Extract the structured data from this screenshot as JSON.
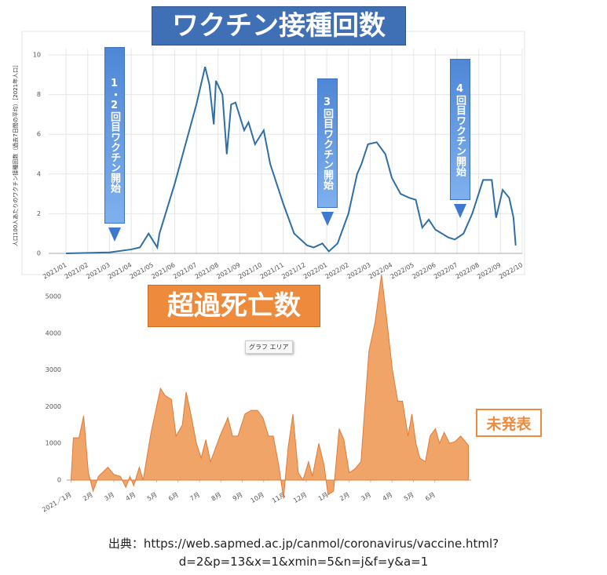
{
  "chart_data": [
    {
      "type": "line",
      "title": "ワクチン接種回数",
      "y_label": "人口100人あたりのワクチン接種回数（過去7日間の平均）［2021年人口］",
      "annotations": [
        "1・2回目ワクチン開始",
        "3回目ワクチン開始",
        "4回目ワクチン開始"
      ],
      "xlim": [
        -0.8,
        21
      ],
      "xticks": [
        {
          "value": 0,
          "label": "2021/01"
        },
        {
          "value": 1,
          "label": "2021/02"
        },
        {
          "value": 2,
          "label": "2021/03"
        },
        {
          "value": 3,
          "label": "2021/04"
        },
        {
          "value": 4,
          "label": "2021/05"
        },
        {
          "value": 5,
          "label": "2021/06"
        },
        {
          "value": 6,
          "label": "2021/07"
        },
        {
          "value": 7,
          "label": "2021/08"
        },
        {
          "value": 8,
          "label": "2021/09"
        },
        {
          "value": 9,
          "label": "2021/10"
        },
        {
          "value": 10,
          "label": "2021/11"
        },
        {
          "value": 11,
          "label": "2021/12"
        },
        {
          "value": 12,
          "label": "2022/01"
        },
        {
          "value": 13,
          "label": "2022/02"
        },
        {
          "value": 14,
          "label": "2022/03"
        },
        {
          "value": 15,
          "label": "2022/04"
        },
        {
          "value": 16,
          "label": "2022/05"
        },
        {
          "value": 17,
          "label": "2022/06"
        },
        {
          "value": 18,
          "label": "2022/07"
        },
        {
          "value": 19,
          "label": "2022/08"
        },
        {
          "value": 20,
          "label": "2022/09"
        },
        {
          "value": 21,
          "label": "2022/10"
        }
      ],
      "ylim": [
        0,
        10
      ],
      "yticks": [
        0,
        2,
        4,
        6,
        8,
        10
      ],
      "grid": true,
      "series": [
        {
          "color": "#2f6ea5",
          "x": [
            0,
            2.0,
            3.0,
            3.4,
            3.8,
            4.2,
            4.3,
            5.0,
            6.0,
            6.4,
            6.6,
            6.8,
            6.9,
            7.2,
            7.4,
            7.6,
            7.8,
            8.2,
            8.4,
            8.7,
            9.1,
            9.4,
            10.0,
            10.5,
            11.1,
            11.4,
            11.8,
            12.1,
            12.5,
            13.0,
            13.4,
            13.6,
            13.9,
            14.3,
            14.7,
            15.0,
            15.4,
            15.8,
            16.1,
            16.4,
            16.7,
            17.0,
            17.6,
            17.9,
            18.3,
            18.7,
            19.2,
            19.6,
            19.8,
            20.1,
            20.4,
            20.6,
            20.7
          ],
          "values": [
            0,
            0.05,
            0.2,
            0.3,
            1.0,
            0.3,
            1.0,
            3.5,
            7.5,
            9.4,
            8.5,
            6.5,
            8.7,
            8.0,
            5.0,
            7.5,
            7.6,
            6.2,
            6.6,
            5.5,
            6.2,
            4.5,
            2.5,
            1.0,
            0.4,
            0.3,
            0.5,
            0.1,
            0.5,
            2.0,
            4.0,
            4.5,
            5.5,
            5.6,
            5.0,
            3.8,
            3.0,
            2.8,
            2.7,
            1.3,
            1.7,
            1.2,
            0.8,
            0.7,
            1.0,
            2.0,
            3.7,
            3.7,
            1.8,
            3.2,
            2.8,
            1.8,
            0.4
          ]
        }
      ]
    },
    {
      "type": "area",
      "title": "超過死亡数",
      "annotations": [
        "グラフ エリア",
        "未発表"
      ],
      "xlim": [
        -0.2,
        18.7
      ],
      "xticks": [
        {
          "value": 0,
          "label": "2021／1月"
        },
        {
          "value": 1,
          "label": "2月"
        },
        {
          "value": 2,
          "label": "3月"
        },
        {
          "value": 3,
          "label": "4月"
        },
        {
          "value": 4,
          "label": "5月"
        },
        {
          "value": 5,
          "label": "6月"
        },
        {
          "value": 6,
          "label": "7月"
        },
        {
          "value": 7,
          "label": "8月"
        },
        {
          "value": 8,
          "label": "9月"
        },
        {
          "value": 9,
          "label": "10月"
        },
        {
          "value": 10,
          "label": "11月"
        },
        {
          "value": 11,
          "label": "12月"
        },
        {
          "value": 12,
          "label": "1月"
        },
        {
          "value": 13,
          "label": "2月"
        },
        {
          "value": 14,
          "label": "3月"
        },
        {
          "value": 15,
          "label": "4月"
        },
        {
          "value": 16,
          "label": "5月"
        },
        {
          "value": 17,
          "label": "6月"
        }
      ],
      "ylim": [
        0,
        5000
      ],
      "yticks": [
        0,
        1000,
        2000,
        3000,
        4000,
        5000
      ],
      "grid": false,
      "series": [
        {
          "color": "#f0a468",
          "x": [
            0.0,
            0.11,
            0.37,
            0.59,
            0.81,
            1.03,
            1.28,
            1.72,
            2.01,
            2.31,
            2.56,
            2.75,
            2.93,
            3.19,
            3.37,
            3.74,
            4.18,
            4.4,
            4.69,
            4.91,
            5.2,
            5.38,
            5.6,
            5.86,
            6.08,
            6.3,
            6.52,
            6.96,
            7.33,
            7.55,
            7.8,
            8.13,
            8.42,
            8.71,
            8.97,
            9.23,
            9.45,
            9.71,
            9.93,
            10.15,
            10.37,
            10.62,
            10.84,
            11.1,
            11.28,
            11.58,
            11.83,
            12.01,
            12.27,
            12.53,
            12.75,
            13.0,
            13.26,
            13.55,
            13.92,
            14.21,
            14.51,
            14.73,
            15.02,
            15.27,
            15.49,
            15.75,
            15.93,
            16.12,
            16.3,
            16.56,
            16.78,
            17.03,
            17.22,
            17.44,
            17.69,
            17.95,
            18.21,
            18.57
          ],
          "values": [
            0,
            1150,
            1150,
            1750,
            200,
            -300,
            100,
            350,
            150,
            100,
            -200,
            100,
            -150,
            350,
            0,
            1300,
            2500,
            2300,
            2200,
            1200,
            1500,
            2400,
            1800,
            1000,
            600,
            1100,
            500,
            1200,
            1700,
            1200,
            1200,
            1800,
            1900,
            1900,
            1700,
            1200,
            1200,
            400,
            -500,
            900,
            1800,
            200,
            0,
            500,
            100,
            1000,
            400,
            -400,
            -300,
            1400,
            1100,
            200,
            300,
            500,
            3500,
            4300,
            5600,
            4500,
            3000,
            2150,
            2150,
            1200,
            1800,
            1000,
            600,
            500,
            1200,
            1400,
            1000,
            1300,
            1000,
            1050,
            1200,
            950
          ]
        }
      ]
    }
  ],
  "source": [
    "出典：https://web.sapmed.ac.jp/canmol/coronavirus/vaccine.html?",
    "d=2&p=13&x=1&xmin=5&n=j&f=y&a=1"
  ]
}
